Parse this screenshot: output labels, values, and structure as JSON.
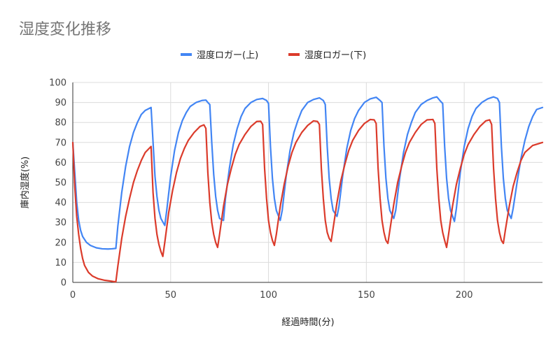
{
  "chart_data": {
    "type": "line",
    "title": "湿度変化推移",
    "xlabel": "経過時間(分)",
    "ylabel": "庫内湿度(%)",
    "xlim": [
      0,
      240
    ],
    "ylim": [
      0,
      100
    ],
    "xticks": [
      0,
      50,
      100,
      150,
      200
    ],
    "yticks": [
      0,
      10,
      20,
      30,
      40,
      50,
      60,
      70,
      80,
      90,
      100
    ],
    "grid": true,
    "legend_position": "top",
    "series": [
      {
        "name": "湿度ロガー(上)",
        "color": "#4285f4",
        "points": [
          [
            0,
            70
          ],
          [
            1,
            55
          ],
          [
            2,
            40
          ],
          [
            3,
            31
          ],
          [
            4,
            26
          ],
          [
            5,
            23
          ],
          [
            7,
            20
          ],
          [
            9,
            18.5
          ],
          [
            12,
            17.3
          ],
          [
            15,
            16.8
          ],
          [
            18,
            16.7
          ],
          [
            20,
            16.8
          ],
          [
            22,
            17
          ],
          [
            23,
            28
          ],
          [
            25,
            45
          ],
          [
            27,
            58
          ],
          [
            29,
            68
          ],
          [
            31,
            75
          ],
          [
            33,
            80
          ],
          [
            35,
            84
          ],
          [
            37,
            86
          ],
          [
            40,
            87.5
          ],
          [
            42,
            53
          ],
          [
            43,
            43
          ],
          [
            44,
            36
          ],
          [
            45,
            32
          ],
          [
            47,
            28.5
          ],
          [
            48,
            36
          ],
          [
            50,
            53
          ],
          [
            52,
            66
          ],
          [
            54,
            75
          ],
          [
            56,
            81
          ],
          [
            58,
            85
          ],
          [
            60,
            88
          ],
          [
            63,
            90
          ],
          [
            66,
            91
          ],
          [
            68,
            91.2
          ],
          [
            69,
            90
          ],
          [
            70,
            89
          ],
          [
            71,
            70
          ],
          [
            72,
            54
          ],
          [
            73,
            43
          ],
          [
            74,
            36
          ],
          [
            75,
            32
          ],
          [
            77,
            31
          ],
          [
            78,
            42
          ],
          [
            80,
            57
          ],
          [
            82,
            69
          ],
          [
            84,
            77
          ],
          [
            86,
            83
          ],
          [
            88,
            87
          ],
          [
            91,
            90
          ],
          [
            94,
            91.5
          ],
          [
            97,
            92
          ],
          [
            99,
            91
          ],
          [
            100,
            89.5
          ],
          [
            101,
            68
          ],
          [
            102,
            52
          ],
          [
            103,
            42
          ],
          [
            104,
            36
          ],
          [
            106,
            31
          ],
          [
            107,
            36
          ],
          [
            109,
            53
          ],
          [
            111,
            66
          ],
          [
            113,
            75
          ],
          [
            115,
            81
          ],
          [
            117,
            86
          ],
          [
            120,
            90
          ],
          [
            123,
            91.5
          ],
          [
            126,
            92.3
          ],
          [
            128,
            91
          ],
          [
            129,
            89
          ],
          [
            130,
            68
          ],
          [
            131,
            52
          ],
          [
            132,
            42
          ],
          [
            133,
            36
          ],
          [
            135,
            33
          ],
          [
            136,
            38
          ],
          [
            138,
            54
          ],
          [
            140,
            67
          ],
          [
            142,
            76
          ],
          [
            144,
            82
          ],
          [
            146,
            86
          ],
          [
            149,
            90
          ],
          [
            152,
            91.8
          ],
          [
            155,
            92.6
          ],
          [
            157,
            91
          ],
          [
            158,
            90
          ],
          [
            159,
            68
          ],
          [
            160,
            52
          ],
          [
            161,
            42
          ],
          [
            162,
            36
          ],
          [
            164,
            32
          ],
          [
            165,
            36
          ],
          [
            167,
            52
          ],
          [
            169,
            65
          ],
          [
            171,
            74
          ],
          [
            173,
            80
          ],
          [
            175,
            85
          ],
          [
            178,
            89
          ],
          [
            181,
            91
          ],
          [
            184,
            92.3
          ],
          [
            186,
            92.8
          ],
          [
            188,
            90.5
          ],
          [
            189,
            89.5
          ],
          [
            190,
            68
          ],
          [
            191,
            52
          ],
          [
            192,
            42
          ],
          [
            193,
            36
          ],
          [
            195,
            30.5
          ],
          [
            196,
            37
          ],
          [
            198,
            55
          ],
          [
            200,
            68
          ],
          [
            202,
            77
          ],
          [
            204,
            83
          ],
          [
            206,
            87
          ],
          [
            209,
            90
          ],
          [
            212,
            91.8
          ],
          [
            215,
            92.8
          ],
          [
            217,
            92
          ],
          [
            218,
            90
          ],
          [
            219,
            68
          ],
          [
            220,
            52
          ],
          [
            221,
            42
          ],
          [
            222,
            36
          ],
          [
            224,
            32
          ],
          [
            225,
            37
          ],
          [
            227,
            50
          ],
          [
            229,
            62
          ],
          [
            231,
            71
          ],
          [
            233,
            78
          ],
          [
            235,
            83
          ],
          [
            237,
            86.5
          ],
          [
            240,
            87.5
          ]
        ]
      },
      {
        "name": "湿度ロガー(下)",
        "color": "#db3b2b",
        "points": [
          [
            0,
            70
          ],
          [
            1,
            48
          ],
          [
            2,
            33
          ],
          [
            3,
            24
          ],
          [
            4,
            17
          ],
          [
            5,
            12
          ],
          [
            6,
            8.5
          ],
          [
            8,
            5
          ],
          [
            10,
            3.2
          ],
          [
            13,
            1.8
          ],
          [
            16,
            1.1
          ],
          [
            19,
            0.7
          ],
          [
            21,
            0.4
          ],
          [
            22,
            0.3
          ],
          [
            23,
            8
          ],
          [
            25,
            22
          ],
          [
            27,
            33
          ],
          [
            29,
            42
          ],
          [
            31,
            50
          ],
          [
            33,
            56
          ],
          [
            35,
            61
          ],
          [
            37,
            65
          ],
          [
            40,
            68
          ],
          [
            41,
            45
          ],
          [
            42,
            32
          ],
          [
            43,
            24
          ],
          [
            44,
            19
          ],
          [
            45,
            15.5
          ],
          [
            46,
            13
          ],
          [
            47,
            20
          ],
          [
            49,
            35
          ],
          [
            51,
            46
          ],
          [
            53,
            55
          ],
          [
            55,
            62
          ],
          [
            57,
            67
          ],
          [
            59,
            71
          ],
          [
            62,
            75
          ],
          [
            65,
            78
          ],
          [
            67,
            78.8
          ],
          [
            68,
            77
          ],
          [
            69,
            55
          ],
          [
            70,
            40
          ],
          [
            71,
            30
          ],
          [
            72,
            24
          ],
          [
            73,
            20
          ],
          [
            74,
            17.5
          ],
          [
            75,
            24
          ],
          [
            77,
            38
          ],
          [
            79,
            49
          ],
          [
            81,
            57
          ],
          [
            83,
            64
          ],
          [
            85,
            69
          ],
          [
            88,
            74
          ],
          [
            91,
            78
          ],
          [
            94,
            80.5
          ],
          [
            96,
            80.6
          ],
          [
            97,
            79
          ],
          [
            98,
            57
          ],
          [
            99,
            42
          ],
          [
            100,
            31
          ],
          [
            101,
            25
          ],
          [
            102,
            21
          ],
          [
            103,
            18.5
          ],
          [
            104,
            24
          ],
          [
            106,
            38
          ],
          [
            108,
            49
          ],
          [
            110,
            58
          ],
          [
            112,
            65
          ],
          [
            114,
            70
          ],
          [
            117,
            75
          ],
          [
            120,
            78.5
          ],
          [
            123,
            80.8
          ],
          [
            125,
            80.5
          ],
          [
            126,
            79
          ],
          [
            127,
            57
          ],
          [
            128,
            42
          ],
          [
            129,
            31
          ],
          [
            130,
            25
          ],
          [
            131,
            22
          ],
          [
            132,
            20.5
          ],
          [
            133,
            27
          ],
          [
            135,
            40
          ],
          [
            137,
            51
          ],
          [
            139,
            59
          ],
          [
            141,
            66
          ],
          [
            143,
            71
          ],
          [
            146,
            76
          ],
          [
            149,
            79.5
          ],
          [
            152,
            81.5
          ],
          [
            154,
            81.3
          ],
          [
            155,
            79.5
          ],
          [
            156,
            57
          ],
          [
            157,
            42
          ],
          [
            158,
            31
          ],
          [
            159,
            25
          ],
          [
            160,
            21
          ],
          [
            161,
            19.5
          ],
          [
            162,
            26
          ],
          [
            164,
            39
          ],
          [
            166,
            50
          ],
          [
            168,
            58
          ],
          [
            170,
            65
          ],
          [
            172,
            70
          ],
          [
            175,
            75
          ],
          [
            178,
            79
          ],
          [
            181,
            81.3
          ],
          [
            184,
            81.5
          ],
          [
            185,
            79.5
          ],
          [
            186,
            57
          ],
          [
            187,
            42
          ],
          [
            188,
            31
          ],
          [
            189,
            25
          ],
          [
            190,
            21
          ],
          [
            191,
            17.5
          ],
          [
            192,
            24
          ],
          [
            194,
            38
          ],
          [
            196,
            49
          ],
          [
            198,
            57
          ],
          [
            200,
            64
          ],
          [
            202,
            69
          ],
          [
            205,
            74
          ],
          [
            208,
            78
          ],
          [
            211,
            80.8
          ],
          [
            213,
            81.3
          ],
          [
            214,
            79
          ],
          [
            215,
            57
          ],
          [
            216,
            42
          ],
          [
            217,
            31
          ],
          [
            218,
            25
          ],
          [
            219,
            21
          ],
          [
            220,
            19.5
          ],
          [
            221,
            26
          ],
          [
            223,
            38
          ],
          [
            225,
            48
          ],
          [
            227,
            55
          ],
          [
            229,
            61
          ],
          [
            231,
            65
          ],
          [
            235,
            68.5
          ],
          [
            240,
            70
          ]
        ]
      }
    ]
  }
}
